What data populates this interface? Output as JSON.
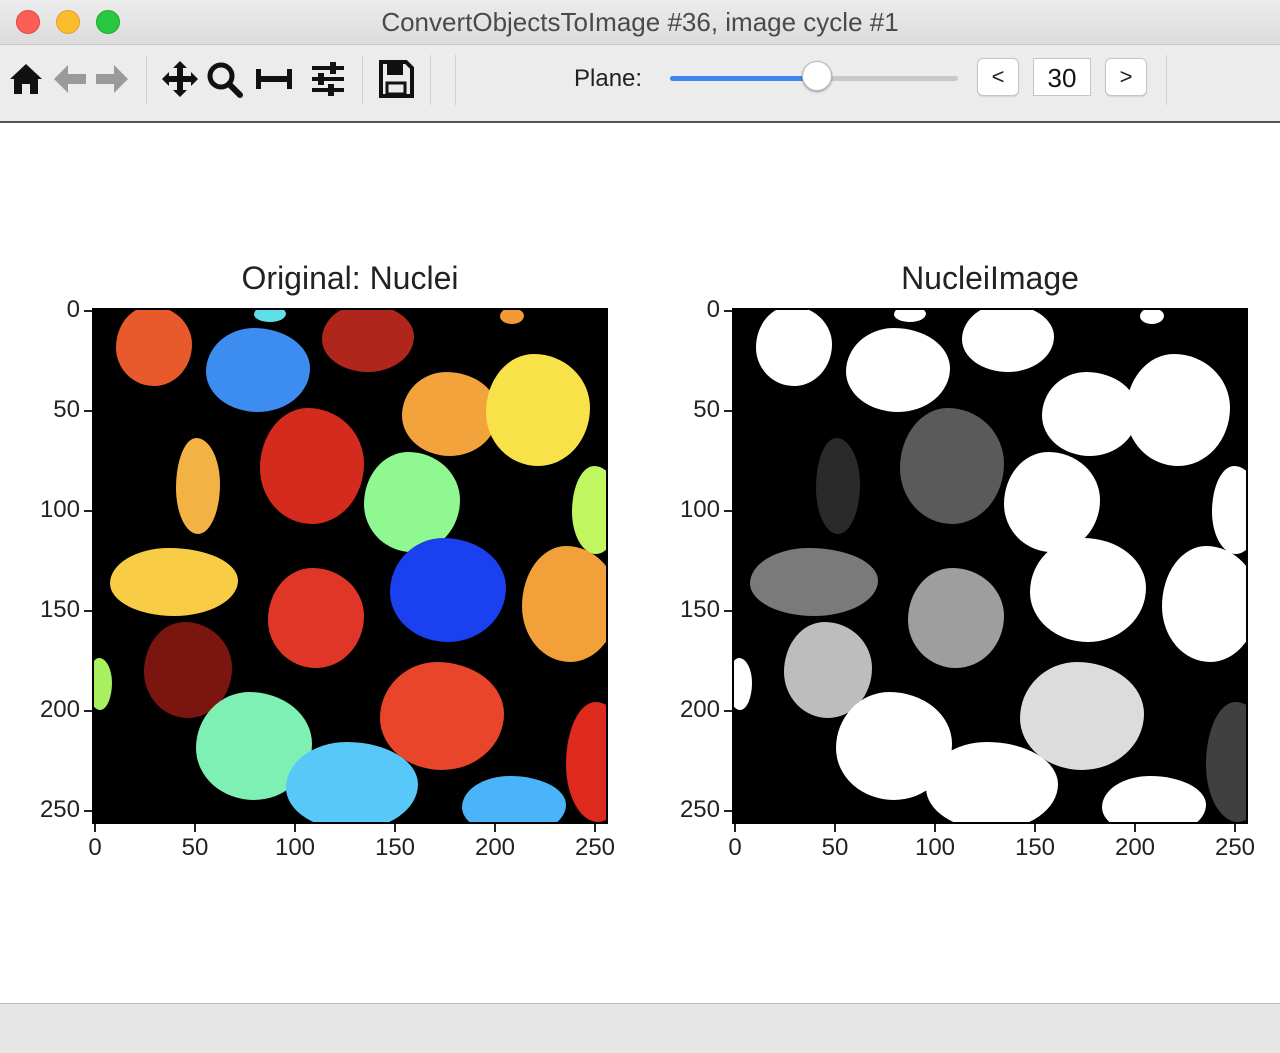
{
  "window": {
    "title": "ConvertObjectsToImage #36, image cycle #1"
  },
  "toolbar": {
    "icons": [
      "home-icon",
      "back-arrow-icon",
      "forward-arrow-icon",
      "pan-icon",
      "zoom-icon",
      "subplots-icon",
      "configure-icon",
      "save-icon"
    ],
    "plane_label": "Plane:",
    "plane_value": "30",
    "slider_fraction": 0.51,
    "prev_label": "<",
    "next_label": ">",
    "slider_color": "#3d86f0"
  },
  "plots": [
    {
      "title": "Original: Nuclei",
      "x_ticks": [
        "0",
        "50",
        "100",
        "150",
        "200",
        "250"
      ],
      "y_ticks": [
        "0",
        "50",
        "100",
        "150",
        "200",
        "250"
      ],
      "colormap": "jet"
    },
    {
      "title": "NucleiImage",
      "x_ticks": [
        "0",
        "50",
        "100",
        "150",
        "200",
        "250"
      ],
      "y_ticks": [
        "0",
        "50",
        "100",
        "150",
        "200",
        "250"
      ],
      "colormap": "gray"
    }
  ],
  "objects": [
    {
      "cx": 30,
      "cy": 18,
      "rx": 19,
      "ry": 20,
      "color": "#e85a2c",
      "gray": "#ffffff"
    },
    {
      "cx": 88,
      "cy": 2,
      "rx": 8,
      "ry": 4,
      "color": "#5ee0e8",
      "gray": "#ffffff"
    },
    {
      "cx": 82,
      "cy": 30,
      "rx": 26,
      "ry": 21,
      "color": "#3d8df0",
      "gray": "#ffffff"
    },
    {
      "cx": 137,
      "cy": 14,
      "rx": 23,
      "ry": 17,
      "color": "#b0251c",
      "gray": "#ffffff"
    },
    {
      "cx": 209,
      "cy": 3,
      "rx": 6,
      "ry": 4,
      "color": "#f09a38",
      "gray": "#ffffff"
    },
    {
      "cx": 178,
      "cy": 52,
      "rx": 24,
      "ry": 21,
      "color": "#f2a33c",
      "gray": "#ffffff"
    },
    {
      "cx": 222,
      "cy": 50,
      "rx": 26,
      "ry": 28,
      "color": "#f8e24a",
      "gray": "#ffffff"
    },
    {
      "cx": 109,
      "cy": 78,
      "rx": 26,
      "ry": 29,
      "color": "#d52b1e",
      "gray": "#5a5a5a"
    },
    {
      "cx": 52,
      "cy": 88,
      "rx": 11,
      "ry": 24,
      "color": "#f2b244",
      "gray": "#2a2a2a"
    },
    {
      "cx": 159,
      "cy": 96,
      "rx": 24,
      "ry": 25,
      "color": "#90f890",
      "gray": "#ffffff"
    },
    {
      "cx": 251,
      "cy": 100,
      "rx": 12,
      "ry": 22,
      "color": "#c0f760",
      "gray": "#ffffff"
    },
    {
      "cx": 40,
      "cy": 136,
      "rx": 32,
      "ry": 17,
      "color": "#f8cc44",
      "gray": "#7a7a7a"
    },
    {
      "cx": 111,
      "cy": 154,
      "rx": 24,
      "ry": 25,
      "color": "#e03628",
      "gray": "#9e9e9e"
    },
    {
      "cx": 177,
      "cy": 140,
      "rx": 29,
      "ry": 26,
      "color": "#1a40f0",
      "gray": "#ffffff"
    },
    {
      "cx": 238,
      "cy": 147,
      "rx": 24,
      "ry": 29,
      "color": "#f2a03a",
      "gray": "#ffffff"
    },
    {
      "cx": 47,
      "cy": 180,
      "rx": 22,
      "ry": 24,
      "color": "#7b1510",
      "gray": "#bdbdbd"
    },
    {
      "cx": 3,
      "cy": 187,
      "rx": 6,
      "ry": 13,
      "color": "#a8f060",
      "gray": "#ffffff"
    },
    {
      "cx": 80,
      "cy": 218,
      "rx": 29,
      "ry": 27,
      "color": "#7ff0b4",
      "gray": "#ffffff"
    },
    {
      "cx": 174,
      "cy": 203,
      "rx": 31,
      "ry": 27,
      "color": "#e8452a",
      "gray": "#dcdcdc"
    },
    {
      "cx": 129,
      "cy": 238,
      "rx": 33,
      "ry": 22,
      "color": "#58c8f8",
      "gray": "#ffffff"
    },
    {
      "cx": 252,
      "cy": 226,
      "rx": 16,
      "ry": 30,
      "color": "#dd2a1c",
      "gray": "#404040"
    },
    {
      "cx": 210,
      "cy": 248,
      "rx": 26,
      "ry": 15,
      "color": "#4ab4f8",
      "gray": "#ffffff"
    }
  ]
}
